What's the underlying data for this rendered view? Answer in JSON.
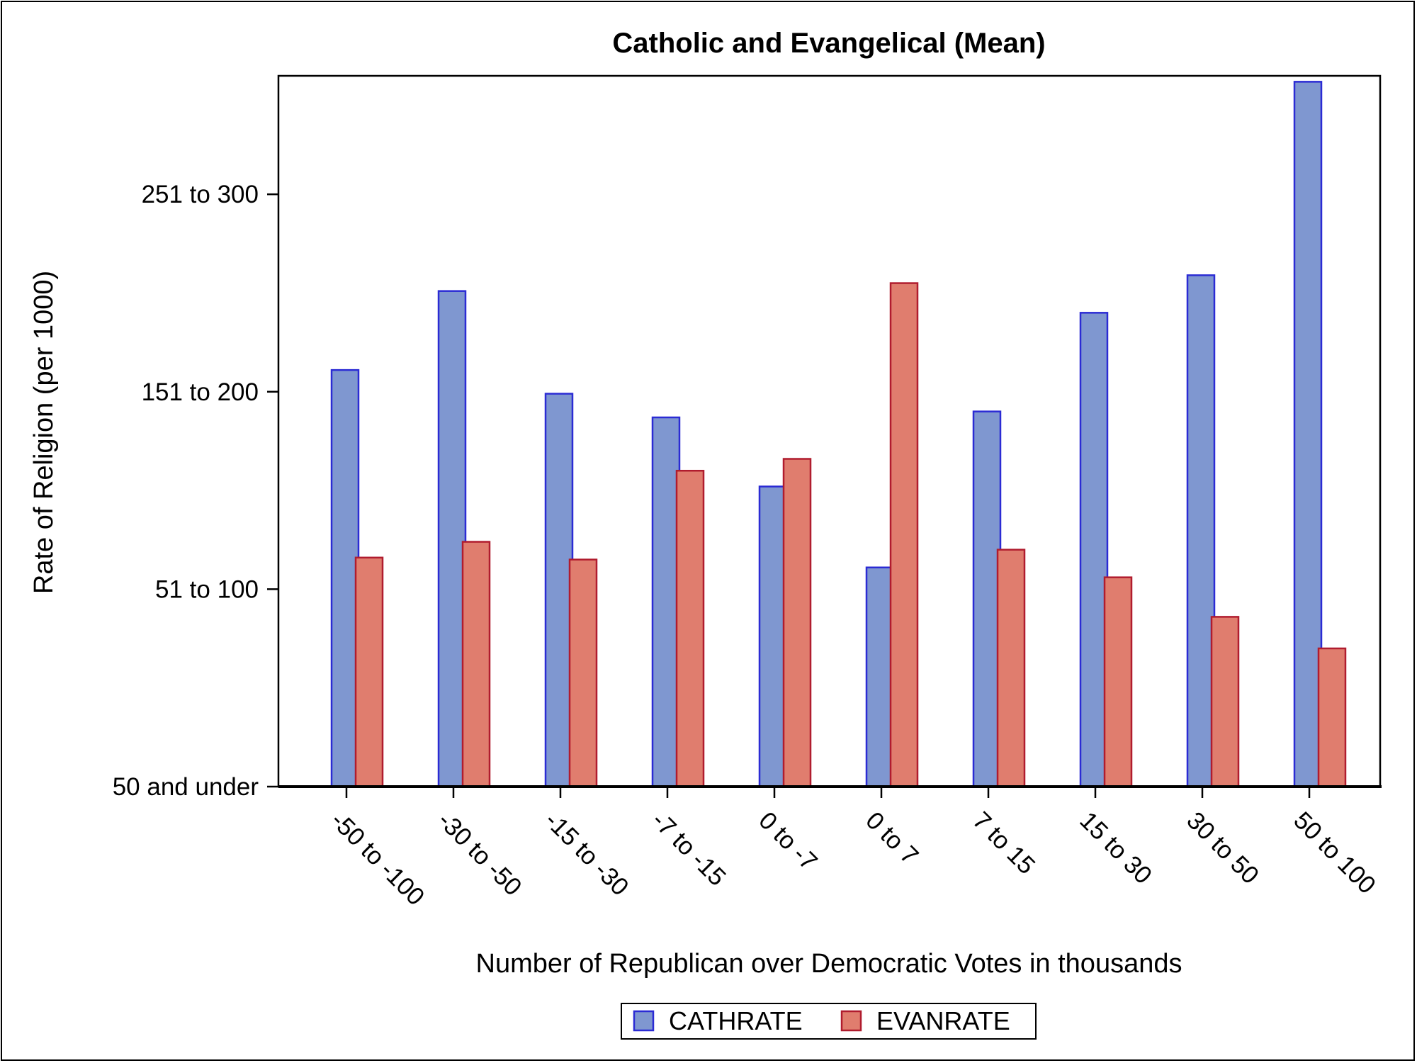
{
  "chart_data": {
    "type": "bar",
    "title": "Catholic and Evangelical (Mean)",
    "xlabel": "Number of Republican over Democratic Votes in thousands",
    "ylabel": "Rate of Religion (per 1000)",
    "categories": [
      "-50 to -100",
      "-30 to -50",
      "-15 to -30",
      "-7 to -15",
      "0 to -7",
      "0 to 7",
      "7 to 15",
      "15 to 30",
      "30 to 50",
      "50 to 100"
    ],
    "y_ticks": [
      {
        "value": 1,
        "label": "50 and under"
      },
      {
        "value": 2,
        "label": "51 to 100"
      },
      {
        "value": 3,
        "label": "151 to 200"
      },
      {
        "value": 4,
        "label": "251 to 300"
      }
    ],
    "ylim": [
      1,
      4.6
    ],
    "series": [
      {
        "name": "CATHRATE",
        "fill": "#7f97d0",
        "stroke": "#2b2bd4",
        "values": [
          3.11,
          3.51,
          2.99,
          2.87,
          2.52,
          2.11,
          2.9,
          3.4,
          3.59,
          4.57
        ]
      },
      {
        "name": "EVANRATE",
        "fill": "#e07d6e",
        "stroke": "#b01c2e",
        "values": [
          2.16,
          2.24,
          2.15,
          2.6,
          2.66,
          3.55,
          2.2,
          2.06,
          1.86,
          1.7
        ]
      }
    ],
    "legend_position": "bottom-center",
    "grid": false
  }
}
